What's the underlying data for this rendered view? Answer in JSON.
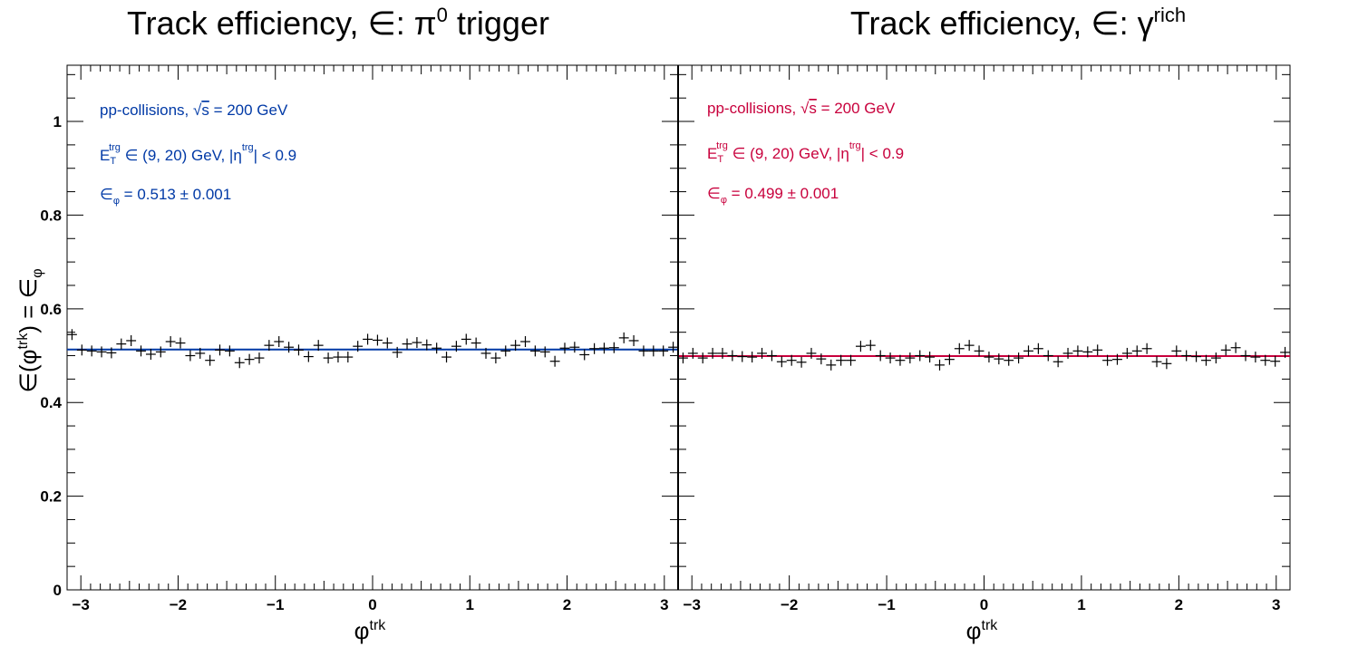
{
  "chart_data": [
    {
      "type": "scatter",
      "panel": "left",
      "title_parts": {
        "main": "Track efficiency, ∈: π",
        "sup": "0",
        "tail": " trigger"
      },
      "xlabel": {
        "base": "φ",
        "sup": "trk"
      },
      "ylabel": "∈(φ^trk) = ∈_φ",
      "ylabel_parts": {
        "a": "∈(φ",
        "sup": "trk",
        "b": ") = ∈",
        "sub": "φ"
      },
      "xlim": [
        -3.14159,
        3.14159
      ],
      "ylim": [
        0,
        1.12
      ],
      "xticks": [
        -3,
        -2,
        -1,
        0,
        1,
        2,
        3
      ],
      "xtick_labels": [
        "−3",
        "−2",
        "−1",
        "0",
        "1",
        "2",
        "3"
      ],
      "yticks": [
        0,
        0.2,
        0.4,
        0.6,
        0.8,
        1
      ],
      "ytick_labels": [
        "0",
        "0.2",
        "0.4",
        "0.6",
        "0.8",
        "1"
      ],
      "fit_value": 0.513,
      "fit_color": "#0039a6",
      "marker_color": "#000000",
      "y_values": [
        0.545,
        0.512,
        0.51,
        0.508,
        0.506,
        0.525,
        0.532,
        0.51,
        0.503,
        0.508,
        0.53,
        0.527,
        0.5,
        0.505,
        0.49,
        0.512,
        0.51,
        0.485,
        0.492,
        0.495,
        0.522,
        0.53,
        0.518,
        0.512,
        0.498,
        0.522,
        0.495,
        0.497,
        0.497,
        0.52,
        0.535,
        0.533,
        0.527,
        0.507,
        0.525,
        0.528,
        0.523,
        0.516,
        0.497,
        0.52,
        0.535,
        0.527,
        0.505,
        0.495,
        0.51,
        0.522,
        0.53,
        0.51,
        0.508,
        0.488,
        0.516,
        0.518,
        0.502,
        0.515,
        0.516,
        0.517,
        0.538,
        0.532,
        0.51,
        0.51,
        0.51,
        0.518
      ],
      "annotations": {
        "line1": {
          "a": "pp-collisions, ",
          "b": "s",
          "c": " = 200 GeV"
        },
        "line2": {
          "a": "E",
          "sub": "T",
          "sup": "trg",
          "b": " ∈ (9, 20) GeV, |η",
          "sup2": "trg",
          "c": "| < 0.9"
        },
        "line3": {
          "a": "∈",
          "sub": "φ",
          "b": " = 0.513 ± 0.001"
        },
        "color": "#0039a6"
      }
    },
    {
      "type": "scatter",
      "panel": "right",
      "title_parts": {
        "main": "Track efficiency, ∈: γ",
        "sup": "rich",
        "tail": ""
      },
      "xlabel": {
        "base": "φ",
        "sup": "trk"
      },
      "xlim": [
        -3.14159,
        3.14159
      ],
      "ylim": [
        0,
        1.12
      ],
      "xticks": [
        -3,
        -2,
        -1,
        0,
        1,
        2,
        3
      ],
      "xtick_labels": [
        "−3",
        "−2",
        "−1",
        "0",
        "1",
        "2",
        "3"
      ],
      "fit_value": 0.499,
      "fit_color": "#c8003c",
      "marker_color": "#000000",
      "y_values": [
        0.495,
        0.505,
        0.495,
        0.505,
        0.505,
        0.5,
        0.498,
        0.497,
        0.505,
        0.5,
        0.487,
        0.49,
        0.486,
        0.505,
        0.493,
        0.48,
        0.49,
        0.49,
        0.52,
        0.522,
        0.5,
        0.495,
        0.49,
        0.495,
        0.5,
        0.497,
        0.48,
        0.492,
        0.515,
        0.522,
        0.51,
        0.497,
        0.493,
        0.49,
        0.495,
        0.51,
        0.515,
        0.5,
        0.487,
        0.505,
        0.51,
        0.508,
        0.512,
        0.49,
        0.492,
        0.505,
        0.51,
        0.515,
        0.487,
        0.483,
        0.51,
        0.5,
        0.498,
        0.49,
        0.495,
        0.512,
        0.517,
        0.5,
        0.497,
        0.49,
        0.488,
        0.507
      ],
      "annotations": {
        "line1": {
          "a": "pp-collisions, ",
          "b": "s",
          "c": " = 200 GeV"
        },
        "line2": {
          "a": "E",
          "sub": "T",
          "sup": "trg",
          "b": " ∈ (9, 20) GeV, |η",
          "sup2": "trg",
          "c": "| < 0.9"
        },
        "line3": {
          "a": "∈",
          "sub": "φ",
          "b": " = 0.499 ± 0.001"
        },
        "color": "#c8003c"
      }
    }
  ]
}
